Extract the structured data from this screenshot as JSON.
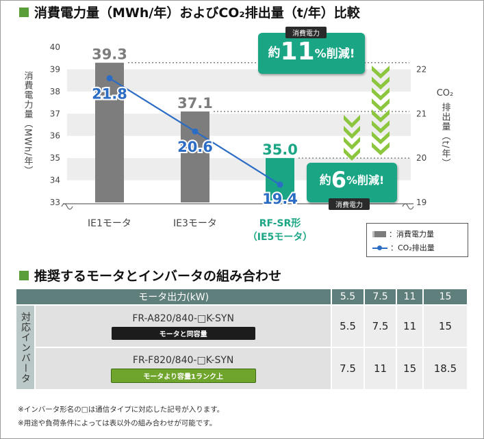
{
  "section1": {
    "title": "消費電力量（MWh/年）およびCO₂排出量（t/年）比較"
  },
  "section2": {
    "title": "推奨するモータとインバータの組み合わせ"
  },
  "chart_data": {
    "type": "bar",
    "categories": [
      "IE1モータ",
      "IE3モータ",
      "RF-SR形"
    ],
    "categories_line2": [
      "",
      "",
      "（IE5モータ）"
    ],
    "ylabel": "消費電力量（MWh/年）",
    "y2label_top": "CO₂",
    "y2label": "排出量（t/年）",
    "ylim": [
      33,
      40
    ],
    "yticks": [
      "33",
      "34",
      "35",
      "36",
      "37",
      "38",
      "39",
      "40"
    ],
    "y2lim": [
      19,
      22.5
    ],
    "y2ticks": [
      "19",
      "20",
      "21",
      "22"
    ],
    "grid": true,
    "series": [
      {
        "name": "：消費電力量",
        "kind": "bar",
        "values": [
          39.3,
          37.1,
          35.0
        ],
        "labels": [
          "39.3",
          "37.1",
          "35.0"
        ],
        "colors": [
          "#7d7d7d",
          "#7d7d7d",
          "#1aa585"
        ]
      },
      {
        "name": "：CO₂排出量",
        "kind": "line",
        "axis": "right",
        "values": [
          21.8,
          20.6,
          19.4
        ],
        "labels": [
          "21.8",
          "20.6",
          "19.4"
        ],
        "color": "#2b6cc4"
      }
    ],
    "annotations": [
      {
        "top_tag": "消費電力",
        "prefix": "約",
        "number": "11",
        "suffix": "%削減!"
      },
      {
        "prefix": "約",
        "number": "6",
        "suffix": "%削減!",
        "bottom_tag": "消費電力"
      }
    ],
    "legend_position": "bottom-right"
  },
  "table": {
    "header_label": "モータ出力(kW)",
    "columns": [
      "5.5",
      "7.5",
      "11",
      "15"
    ],
    "side_label": "対応インバータ",
    "rows": [
      {
        "name": "FR-A820/840-□K-SYN",
        "tag": "モータと同容量",
        "values": [
          "5.5",
          "7.5",
          "11",
          "15"
        ]
      },
      {
        "name": "FR-F820/840-□K-SYN",
        "tag": "モータより容量1ランク上",
        "values": [
          "7.5",
          "11",
          "15",
          "18.5"
        ]
      }
    ]
  },
  "notes": [
    "※インバータ形名の□は通信タイプに対応した記号が入ります。",
    "※用途や負荷条件によっては表以外の組み合わせが可能です。"
  ]
}
